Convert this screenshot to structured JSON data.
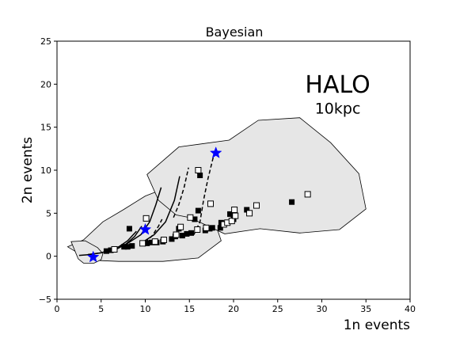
{
  "chart_data": {
    "type": "scatter",
    "title": "Bayesian",
    "xlabel": "1n events",
    "ylabel": "2n events",
    "xlim": [
      0,
      40
    ],
    "ylim": [
      -5,
      25
    ],
    "xticks": [
      0,
      5,
      10,
      15,
      20,
      25,
      30,
      35,
      40
    ],
    "yticks": [
      -5,
      0,
      5,
      10,
      15,
      20,
      25
    ],
    "grid": false,
    "annotations": [
      {
        "text": "HALO",
        "x": 31.8,
        "y": 19.0
      },
      {
        "text": "10kpc",
        "x": 31.8,
        "y": 16.6
      }
    ],
    "colors": {
      "region_fill": "#e6e6e6",
      "region_edge": "#000000",
      "star": "#0000ff",
      "marker": "#000000"
    },
    "regions": [
      {
        "points": [
          [
            1.2,
            1.1
          ],
          [
            3.0,
            1.9
          ],
          [
            5.2,
            4.0
          ],
          [
            7.5,
            5.4
          ],
          [
            10.0,
            7.0
          ],
          [
            12.5,
            8.0
          ],
          [
            14.5,
            8.6
          ],
          [
            16.5,
            6.8
          ],
          [
            17.8,
            4.2
          ],
          [
            18.6,
            1.8
          ],
          [
            16.0,
            -0.2
          ],
          [
            12.0,
            -0.6
          ],
          [
            7.0,
            -0.6
          ],
          [
            4.8,
            -0.5
          ],
          [
            2.5,
            0.3
          ]
        ]
      },
      {
        "points": [
          [
            1.6,
            1.7
          ],
          [
            3.2,
            1.8
          ],
          [
            4.6,
            1.0
          ],
          [
            5.2,
            0.3
          ],
          [
            5.0,
            -0.4
          ],
          [
            4.2,
            -0.8
          ],
          [
            3.0,
            -0.8
          ],
          [
            2.4,
            -0.3
          ]
        ]
      },
      {
        "points": [
          [
            10.2,
            9.5
          ],
          [
            13.8,
            12.7
          ],
          [
            19.5,
            13.5
          ],
          [
            22.8,
            15.8
          ],
          [
            27.5,
            16.1
          ],
          [
            31.0,
            13.2
          ],
          [
            34.2,
            9.6
          ],
          [
            35.0,
            5.5
          ],
          [
            32.0,
            3.1
          ],
          [
            27.5,
            2.7
          ],
          [
            23.0,
            3.2
          ],
          [
            19.0,
            2.6
          ],
          [
            16.5,
            3.8
          ],
          [
            15.0,
            4.5
          ],
          [
            13.5,
            4.8
          ],
          [
            11.5,
            6.5
          ]
        ]
      }
    ],
    "curves": [
      {
        "style": "solid",
        "points": [
          [
            2.5,
            0.1
          ],
          [
            3.8,
            0.2
          ],
          [
            5.0,
            0.4
          ],
          [
            6.0,
            0.7
          ],
          [
            7.0,
            1.1
          ],
          [
            8.0,
            1.8
          ],
          [
            9.0,
            2.9
          ]
        ]
      },
      {
        "style": "solid",
        "points": [
          [
            3.5,
            0.2
          ],
          [
            5.0,
            0.4
          ],
          [
            6.5,
            0.8
          ],
          [
            7.8,
            1.4
          ],
          [
            8.8,
            2.3
          ],
          [
            9.6,
            3.5
          ]
        ]
      },
      {
        "style": "solid",
        "points": [
          [
            6.5,
            0.7
          ],
          [
            8.0,
            1.5
          ],
          [
            9.5,
            2.5
          ],
          [
            10.5,
            4.0
          ],
          [
            11.2,
            6.0
          ],
          [
            11.8,
            8.0
          ]
        ]
      },
      {
        "style": "solid",
        "points": [
          [
            9.5,
            1.5
          ],
          [
            11.0,
            2.5
          ],
          [
            12.3,
            4.0
          ],
          [
            13.3,
            6.5
          ],
          [
            13.9,
            9.3
          ]
        ]
      },
      {
        "style": "dashed",
        "points": [
          [
            10.0,
            1.6
          ],
          [
            10.8,
            2.4
          ],
          [
            11.5,
            3.5
          ],
          [
            11.9,
            4.3
          ]
        ]
      },
      {
        "style": "dashed",
        "points": [
          [
            13.2,
            4.5
          ],
          [
            13.8,
            6.0
          ],
          [
            14.4,
            8.0
          ],
          [
            14.9,
            10.3
          ]
        ]
      },
      {
        "style": "dashed",
        "points": [
          [
            15.5,
            2.5
          ],
          [
            16.2,
            4.0
          ],
          [
            16.6,
            6.5
          ],
          [
            17.1,
            9.0
          ],
          [
            17.7,
            11.5
          ]
        ]
      }
    ],
    "series": [
      {
        "marker": "filled-square",
        "points": [
          [
            5.6,
            0.6
          ],
          [
            6.1,
            0.7
          ],
          [
            7.6,
            1.1
          ],
          [
            8.0,
            1.1
          ],
          [
            8.2,
            3.2
          ],
          [
            8.5,
            1.2
          ],
          [
            10.2,
            1.5
          ],
          [
            10.7,
            1.6
          ],
          [
            11.3,
            1.6
          ],
          [
            12.0,
            1.7
          ],
          [
            13.0,
            2.0
          ],
          [
            13.4,
            2.3
          ],
          [
            13.8,
            3.2
          ],
          [
            14.2,
            2.4
          ],
          [
            14.7,
            2.6
          ],
          [
            15.2,
            2.7
          ],
          [
            15.6,
            4.3
          ],
          [
            16.0,
            5.3
          ],
          [
            16.2,
            9.4
          ],
          [
            16.8,
            3.0
          ],
          [
            17.3,
            3.2
          ],
          [
            17.6,
            3.3
          ],
          [
            18.5,
            3.3
          ],
          [
            18.6,
            3.9
          ],
          [
            19.6,
            4.9
          ],
          [
            20.0,
            4.3
          ],
          [
            21.5,
            5.4
          ],
          [
            26.6,
            6.3
          ]
        ]
      },
      {
        "marker": "open-square",
        "points": [
          [
            6.5,
            0.8
          ],
          [
            9.7,
            1.5
          ],
          [
            10.1,
            4.4
          ],
          [
            11.1,
            1.7
          ],
          [
            12.1,
            1.9
          ],
          [
            13.5,
            2.5
          ],
          [
            14.0,
            3.4
          ],
          [
            15.1,
            4.5
          ],
          [
            15.9,
            3.1
          ],
          [
            16.0,
            10.0
          ],
          [
            16.9,
            3.3
          ],
          [
            17.4,
            6.1
          ],
          [
            18.9,
            3.7
          ],
          [
            19.3,
            3.9
          ],
          [
            19.8,
            4.1
          ],
          [
            20.1,
            5.4
          ],
          [
            20.2,
            4.7
          ],
          [
            21.8,
            5.0
          ],
          [
            22.6,
            5.9
          ],
          [
            28.4,
            7.2
          ]
        ]
      },
      {
        "marker": "star",
        "points": [
          [
            4.1,
            -0.1
          ],
          [
            10.0,
            3.1
          ],
          [
            18.0,
            12.0
          ]
        ]
      }
    ]
  }
}
